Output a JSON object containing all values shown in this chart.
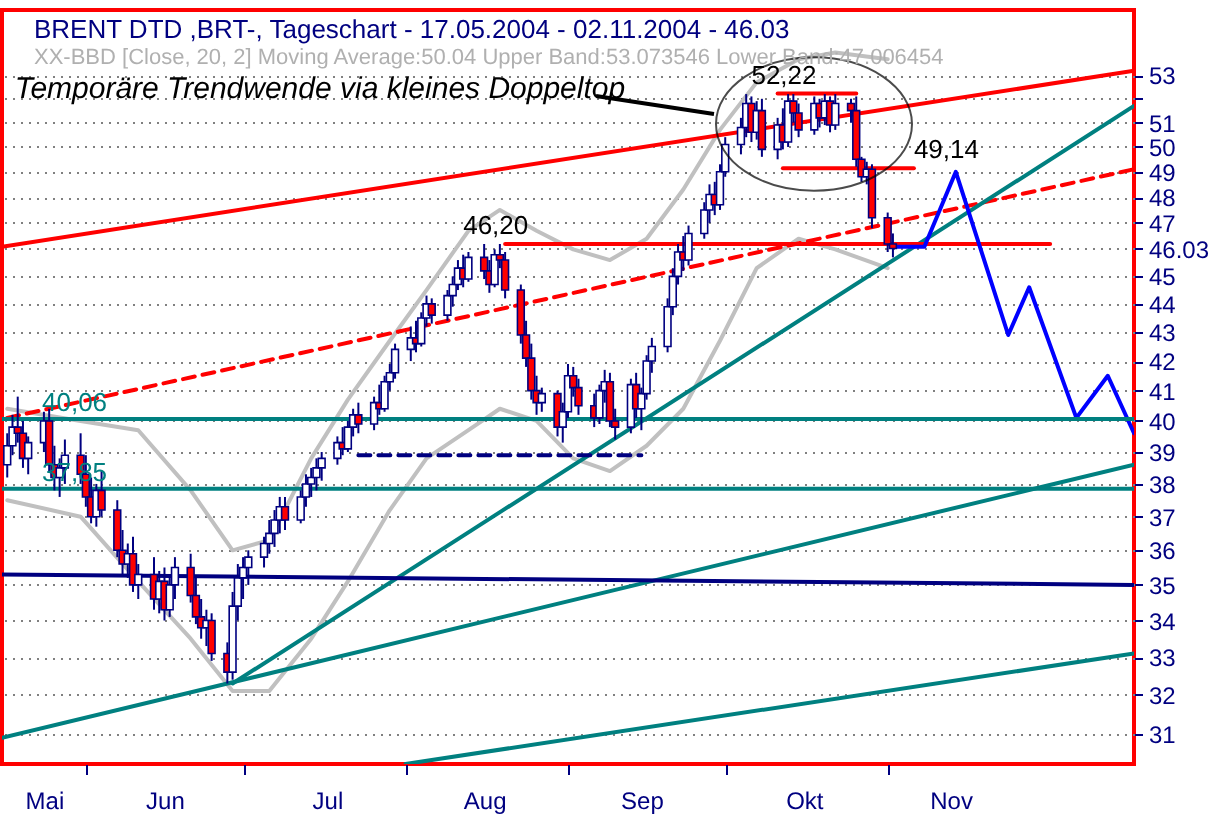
{
  "chart_data": {
    "type": "candlestick",
    "title": "BRENT DTD ,BRT-, Tageschart - 17.05.2004 - 02.11.2004 - 46.03",
    "subtitle": "XX-BBD [Close, 20, 2] Moving Average:50.04 Upper Band:53.073546 Lower Band:47.006454",
    "x": [
      "2004-05-17",
      "2004-05-18",
      "2004-05-19",
      "2004-05-20",
      "2004-05-21",
      "2004-05-24",
      "2004-05-25",
      "2004-05-26",
      "2004-05-27",
      "2004-05-28",
      "2004-05-31",
      "2004-06-01",
      "2004-06-02",
      "2004-06-03",
      "2004-06-04",
      "2004-06-07",
      "2004-06-08",
      "2004-06-09",
      "2004-06-10",
      "2004-06-11",
      "2004-06-14",
      "2004-06-15",
      "2004-06-16",
      "2004-06-17",
      "2004-06-18",
      "2004-06-21",
      "2004-06-22",
      "2004-06-23",
      "2004-06-24",
      "2004-06-25",
      "2004-06-28",
      "2004-06-29",
      "2004-06-30",
      "2004-07-01",
      "2004-07-02",
      "2004-07-05",
      "2004-07-06",
      "2004-07-07",
      "2004-07-08",
      "2004-07-09",
      "2004-07-12",
      "2004-07-13",
      "2004-07-14",
      "2004-07-15",
      "2004-07-16",
      "2004-07-19",
      "2004-07-20",
      "2004-07-21",
      "2004-07-22",
      "2004-07-23",
      "2004-07-26",
      "2004-07-27",
      "2004-07-28",
      "2004-07-29",
      "2004-07-30",
      "2004-08-02",
      "2004-08-03",
      "2004-08-04",
      "2004-08-05",
      "2004-08-06",
      "2004-08-09",
      "2004-08-10",
      "2004-08-11",
      "2004-08-12",
      "2004-08-13",
      "2004-08-16",
      "2004-08-17",
      "2004-08-18",
      "2004-08-19",
      "2004-08-20",
      "2004-08-23",
      "2004-08-24",
      "2004-08-25",
      "2004-08-26",
      "2004-08-27",
      "2004-08-30",
      "2004-08-31",
      "2004-09-01",
      "2004-09-02",
      "2004-09-03",
      "2004-09-06",
      "2004-09-07",
      "2004-09-08",
      "2004-09-09",
      "2004-09-10",
      "2004-09-13",
      "2004-09-14",
      "2004-09-15",
      "2004-09-16",
      "2004-09-17",
      "2004-09-20",
      "2004-09-21",
      "2004-09-22",
      "2004-09-23",
      "2004-09-24",
      "2004-09-27",
      "2004-09-28",
      "2004-09-29",
      "2004-09-30",
      "2004-10-01",
      "2004-10-04",
      "2004-10-05",
      "2004-10-06",
      "2004-10-07",
      "2004-10-08",
      "2004-10-11",
      "2004-10-12",
      "2004-10-13",
      "2004-10-14",
      "2004-10-15",
      "2004-10-18",
      "2004-10-19",
      "2004-10-20",
      "2004-10-21",
      "2004-10-22",
      "2004-10-25",
      "2004-10-26",
      "2004-10-27",
      "2004-10-28",
      "2004-10-29",
      "2004-11-01",
      "2004-11-02"
    ],
    "ohlc": [
      [
        38.6,
        39.6,
        38.2,
        39.2
      ],
      [
        39.2,
        40.2,
        38.9,
        39.8
      ],
      [
        39.8,
        40.8,
        39.3,
        39.6
      ],
      [
        39.6,
        40.0,
        38.5,
        38.8
      ],
      [
        38.8,
        39.5,
        38.3,
        39.3
      ],
      [
        39.3,
        40.3,
        39.0,
        40.0
      ],
      [
        40.0,
        40.4,
        38.4,
        38.6
      ],
      [
        38.6,
        39.2,
        37.8,
        38.2
      ],
      [
        38.2,
        38.8,
        37.6,
        38.5
      ],
      [
        38.5,
        39.4,
        38.0,
        38.9
      ],
      [
        38.9,
        39.6,
        38.0,
        38.3
      ],
      [
        38.3,
        38.9,
        37.3,
        37.6
      ],
      [
        37.6,
        38.2,
        36.8,
        37.0
      ],
      [
        37.0,
        38.0,
        36.7,
        37.8
      ],
      [
        37.8,
        38.4,
        37.0,
        37.2
      ],
      [
        37.2,
        37.5,
        35.8,
        36.0
      ],
      [
        36.0,
        36.6,
        35.3,
        35.6
      ],
      [
        35.6,
        36.2,
        35.2,
        35.9
      ],
      [
        35.9,
        36.4,
        34.8,
        35.0
      ],
      [
        35.0,
        35.6,
        34.6,
        35.3
      ],
      [
        35.3,
        35.8,
        34.3,
        34.6
      ],
      [
        34.6,
        35.4,
        34.2,
        35.1
      ],
      [
        35.1,
        35.5,
        34.0,
        34.3
      ],
      [
        34.3,
        35.3,
        34.1,
        35.0
      ],
      [
        35.0,
        35.8,
        34.6,
        35.5
      ],
      [
        35.5,
        35.9,
        34.5,
        34.7
      ],
      [
        34.7,
        35.2,
        33.9,
        34.1
      ],
      [
        34.1,
        34.6,
        33.5,
        33.8
      ],
      [
        33.8,
        34.3,
        33.3,
        34.0
      ],
      [
        34.0,
        34.2,
        32.9,
        33.1
      ],
      [
        33.1,
        33.4,
        32.3,
        32.6
      ],
      [
        32.6,
        34.8,
        32.4,
        34.4
      ],
      [
        34.4,
        35.6,
        34.0,
        35.2
      ],
      [
        35.2,
        35.8,
        34.6,
        35.5
      ],
      [
        35.5,
        36.0,
        35.0,
        35.8
      ],
      [
        35.8,
        36.4,
        35.5,
        36.2
      ],
      [
        36.2,
        36.9,
        35.9,
        36.5
      ],
      [
        36.5,
        37.2,
        36.1,
        36.9
      ],
      [
        36.9,
        37.6,
        36.5,
        37.3
      ],
      [
        37.3,
        37.6,
        36.6,
        36.9
      ],
      [
        36.9,
        37.8,
        36.8,
        37.6
      ],
      [
        37.6,
        38.3,
        37.3,
        38.0
      ],
      [
        38.0,
        38.5,
        37.6,
        38.2
      ],
      [
        38.2,
        38.8,
        37.8,
        38.5
      ],
      [
        38.5,
        39.0,
        38.1,
        38.8
      ],
      [
        38.8,
        39.5,
        38.6,
        39.3
      ],
      [
        39.3,
        39.8,
        38.9,
        39.1
      ],
      [
        39.1,
        40.0,
        39.0,
        39.8
      ],
      [
        39.8,
        40.4,
        39.5,
        40.2
      ],
      [
        40.2,
        40.6,
        39.6,
        39.9
      ],
      [
        39.9,
        40.8,
        39.7,
        40.6
      ],
      [
        40.6,
        41.2,
        40.2,
        40.4
      ],
      [
        40.4,
        41.5,
        40.3,
        41.3
      ],
      [
        41.3,
        41.9,
        41.0,
        41.6
      ],
      [
        41.6,
        42.6,
        41.4,
        42.4
      ],
      [
        42.4,
        43.2,
        42.0,
        42.8
      ],
      [
        42.8,
        43.4,
        42.3,
        42.6
      ],
      [
        42.6,
        43.7,
        42.5,
        43.5
      ],
      [
        43.5,
        44.3,
        43.2,
        44.0
      ],
      [
        44.0,
        44.2,
        43.3,
        43.6
      ],
      [
        43.6,
        44.5,
        43.4,
        44.3
      ],
      [
        44.3,
        45.0,
        43.9,
        44.7
      ],
      [
        44.7,
        45.6,
        44.5,
        45.3
      ],
      [
        45.3,
        45.8,
        44.6,
        44.9
      ],
      [
        44.9,
        45.9,
        44.8,
        45.7
      ],
      [
        45.7,
        46.2,
        44.9,
        45.2
      ],
      [
        45.2,
        45.6,
        44.4,
        44.7
      ],
      [
        44.7,
        46.0,
        44.6,
        45.8
      ],
      [
        45.8,
        46.2,
        45.3,
        45.6
      ],
      [
        45.6,
        45.9,
        44.2,
        44.5
      ],
      [
        44.5,
        44.7,
        42.6,
        42.9
      ],
      [
        42.9,
        43.4,
        41.8,
        42.1
      ],
      [
        42.1,
        42.6,
        40.7,
        41.0
      ],
      [
        41.0,
        41.5,
        40.2,
        40.6
      ],
      [
        40.6,
        41.1,
        40.3,
        40.9
      ],
      [
        40.9,
        41.0,
        39.5,
        39.8
      ],
      [
        39.8,
        40.6,
        39.3,
        40.3
      ],
      [
        40.3,
        41.9,
        40.1,
        41.5
      ],
      [
        41.5,
        41.8,
        40.8,
        41.1
      ],
      [
        41.1,
        41.4,
        40.2,
        40.5
      ],
      [
        40.5,
        40.9,
        39.8,
        40.1
      ],
      [
        40.1,
        41.2,
        39.9,
        41.0
      ],
      [
        41.0,
        41.7,
        40.6,
        41.3
      ],
      [
        41.3,
        41.6,
        39.8,
        40.0
      ],
      [
        40.0,
        40.4,
        39.4,
        39.8
      ],
      [
        39.8,
        41.4,
        39.6,
        41.2
      ],
      [
        41.2,
        41.6,
        40.1,
        40.4
      ],
      [
        40.4,
        41.1,
        39.7,
        40.9
      ],
      [
        40.9,
        42.2,
        40.7,
        42.0
      ],
      [
        42.0,
        42.8,
        41.6,
        42.5
      ],
      [
        42.5,
        44.2,
        42.3,
        43.9
      ],
      [
        43.9,
        45.3,
        43.6,
        45.0
      ],
      [
        45.0,
        46.2,
        44.7,
        45.9
      ],
      [
        45.9,
        46.5,
        45.2,
        45.6
      ],
      [
        45.6,
        46.9,
        45.4,
        46.6
      ],
      [
        46.6,
        47.8,
        46.4,
        47.5
      ],
      [
        47.5,
        48.5,
        47.0,
        48.1
      ],
      [
        48.1,
        48.6,
        47.3,
        47.7
      ],
      [
        47.7,
        49.3,
        47.5,
        49.0
      ],
      [
        49.0,
        50.4,
        48.8,
        50.1
      ],
      [
        50.1,
        51.2,
        49.7,
        50.8
      ],
      [
        50.8,
        52.2,
        50.4,
        51.8
      ],
      [
        51.8,
        52.1,
        50.2,
        50.6
      ],
      [
        50.6,
        51.9,
        50.3,
        51.5
      ],
      [
        51.5,
        52.0,
        49.6,
        49.9
      ],
      [
        49.9,
        51.2,
        49.5,
        50.9
      ],
      [
        50.9,
        51.6,
        49.9,
        50.2
      ],
      [
        50.2,
        52.2,
        50.0,
        51.9
      ],
      [
        51.9,
        52.2,
        51.0,
        51.4
      ],
      [
        51.4,
        51.8,
        50.4,
        50.7
      ],
      [
        50.7,
        52.1,
        50.5,
        51.8
      ],
      [
        51.8,
        52.0,
        50.8,
        51.2
      ],
      [
        51.2,
        52.2,
        50.9,
        51.9
      ],
      [
        51.9,
        52.1,
        50.6,
        50.9
      ],
      [
        50.9,
        52.2,
        50.7,
        51.8
      ],
      [
        51.8,
        52.0,
        51.0,
        51.5
      ],
      [
        51.5,
        52.1,
        49.2,
        49.5
      ],
      [
        49.5,
        49.6,
        48.6,
        48.8
      ],
      [
        48.8,
        49.4,
        48.5,
        49.1
      ],
      [
        49.1,
        49.3,
        46.8,
        47.2
      ],
      [
        47.2,
        47.4,
        45.9,
        46.2
      ],
      [
        46.2,
        46.6,
        45.7,
        46.03
      ]
    ],
    "color": "#000080",
    "colors": [
      "#ffffff",
      "#ffffff",
      "#ff0000",
      "#ff0000",
      "#ffffff",
      "#ffffff",
      "#ff0000",
      "#ff0000",
      "#ffffff",
      "#ffffff",
      "#ff0000",
      "#ff0000",
      "#ff0000",
      "#ffffff",
      "#ff0000",
      "#ff0000",
      "#ff0000",
      "#ffffff",
      "#ff0000",
      "#ffffff",
      "#ff0000",
      "#ffffff",
      "#ff0000",
      "#ffffff",
      "#ffffff",
      "#ff0000",
      "#ff0000",
      "#ff0000",
      "#ffffff",
      "#ff0000",
      "#ff0000",
      "#ffffff",
      "#ffffff",
      "#ffffff",
      "#ffffff",
      "#ffffff",
      "#ffffff",
      "#ffffff",
      "#ffffff",
      "#ff0000",
      "#ffffff",
      "#ffffff",
      "#ffffff",
      "#ffffff",
      "#ffffff",
      "#ffffff",
      "#ff0000",
      "#ffffff",
      "#ffffff",
      "#ff0000",
      "#ffffff",
      "#ff0000",
      "#ffffff",
      "#ffffff",
      "#ffffff",
      "#ffffff",
      "#ff0000",
      "#ffffff",
      "#ffffff",
      "#ff0000",
      "#ffffff",
      "#ffffff",
      "#ffffff",
      "#ff0000",
      "#ffffff",
      "#ff0000",
      "#ff0000",
      "#ffffff",
      "#ff0000",
      "#ff0000",
      "#ff0000",
      "#ff0000",
      "#ff0000",
      "#ff0000",
      "#ffffff",
      "#ff0000",
      "#ffffff",
      "#ffffff",
      "#ff0000",
      "#ff0000",
      "#ff0000",
      "#ffffff",
      "#ffffff",
      "#ff0000",
      "#ff0000",
      "#ffffff",
      "#ff0000",
      "#ffffff",
      "#ffffff",
      "#ffffff",
      "#ffffff",
      "#ffffff",
      "#ffffff",
      "#ff0000",
      "#ffffff",
      "#ffffff",
      "#ffffff",
      "#ff0000",
      "#ffffff",
      "#ffffff",
      "#ffffff",
      "#ffffff",
      "#ff0000",
      "#ffffff",
      "#ff0000",
      "#ffffff",
      "#ff0000",
      "#ffffff",
      "#ff0000",
      "#ff0000",
      "#ffffff",
      "#ff0000",
      "#ffffff",
      "#ff0000",
      "#ffffff",
      "#ff0000",
      "#ff0000",
      "#ff0000",
      "#ffffff",
      "#ff0000",
      "#ff0000",
      "#ff0000"
    ],
    "series": [
      {
        "type": "line",
        "color": "#c0c0c0",
        "x": [
          "2004-05-17",
          "2004-05-31",
          "2004-06-11",
          "2004-06-21",
          "2004-06-29",
          "2004-07-06",
          "2004-07-14",
          "2004-07-21",
          "2004-07-29",
          "2004-08-05",
          "2004-08-13",
          "2004-08-19",
          "2004-08-26",
          "2004-09-02",
          "2004-09-09",
          "2004-09-16",
          "2004-09-23",
          "2004-09-30",
          "2004-10-07",
          "2004-10-15",
          "2004-10-22",
          "2004-11-01"
        ],
        "values": [
          40.4,
          40.0,
          39.7,
          37.8,
          36.0,
          36.3,
          38.8,
          40.7,
          42.7,
          44.5,
          46.7,
          47.5,
          46.7,
          46.0,
          45.6,
          46.4,
          48.3,
          50.7,
          52.7,
          53.7,
          54.0,
          53.7
        ]
      },
      {
        "type": "line",
        "color": "#c0c0c0",
        "x": [
          "2004-05-17",
          "2004-05-31",
          "2004-06-11",
          "2004-06-21",
          "2004-06-29",
          "2004-07-06",
          "2004-07-14",
          "2004-07-21",
          "2004-07-29",
          "2004-08-05",
          "2004-08-13",
          "2004-08-19",
          "2004-08-26",
          "2004-09-02",
          "2004-09-09",
          "2004-09-16",
          "2004-09-23",
          "2004-09-30",
          "2004-10-07",
          "2004-10-15",
          "2004-10-22",
          "2004-11-01"
        ],
        "values": [
          37.5,
          37.0,
          35.1,
          33.5,
          32.1,
          32.1,
          33.5,
          35.1,
          37.2,
          38.8,
          39.7,
          40.4,
          40.0,
          38.8,
          38.4,
          39.2,
          40.4,
          42.7,
          45.3,
          46.4,
          46.0,
          45.3
        ]
      },
      {
        "type": "line",
        "color": "#ff0000",
        "x": [
          "2004-05-16",
          "2004-12-18"
        ],
        "values": [
          46.1,
          53.2
        ]
      },
      {
        "type": "line",
        "color": "#ff0000",
        "line_style": "dashed",
        "x": [
          "2004-05-17",
          "2004-12-18"
        ],
        "values": [
          40.1,
          49.1
        ]
      },
      {
        "type": "line",
        "color": "#008080",
        "x": [
          "2004-06-29",
          "2004-12-18"
        ],
        "values": [
          32.3,
          51.7
        ]
      },
      {
        "type": "line",
        "color": "#008080",
        "x": [
          "2004-05-16",
          "2004-12-18"
        ],
        "values": [
          30.9,
          38.6
        ]
      },
      {
        "type": "line",
        "color": "#008080",
        "x": [
          "2004-08-01",
          "2004-12-18"
        ],
        "values": [
          30.25,
          33.1
        ]
      },
      {
        "type": "line",
        "color": "#000080",
        "x": [
          "2004-05-16",
          "2004-12-18"
        ],
        "values": [
          35.3,
          35.0
        ]
      },
      {
        "type": "line",
        "color": "#000080",
        "line_style": "dashed",
        "x": [
          "2004-07-23",
          "2004-09-15"
        ],
        "values": [
          38.9,
          38.9
        ]
      },
      {
        "type": "line",
        "color": "#ff0000",
        "x": [
          "2004-08-20",
          "2004-12-02"
        ],
        "values": [
          46.2,
          46.2
        ]
      },
      {
        "type": "line",
        "color": "#ff0000",
        "x": [
          "2004-10-11",
          "2004-10-26"
        ],
        "values": [
          52.22,
          52.22
        ]
      },
      {
        "type": "line",
        "color": "#ff0000",
        "x": [
          "2004-10-12",
          "2004-11-06"
        ],
        "values": [
          49.14,
          49.14
        ]
      },
      {
        "type": "line",
        "color": "#0000ff",
        "x": [
          "2004-11-02",
          "2004-11-08",
          "2004-11-14",
          "2004-11-24",
          "2004-11-28",
          "2004-12-07",
          "2004-12-13",
          "2004-12-18"
        ],
        "values": [
          46.1,
          46.1,
          49.0,
          42.9,
          44.6,
          40.1,
          41.5,
          39.6
        ]
      }
    ],
    "ref_lines": [
      {
        "axis": "y",
        "value": 40.06,
        "label": "40,06",
        "color": "#008080"
      },
      {
        "axis": "y",
        "value": 37.85,
        "label": "37,85",
        "color": "#008080"
      }
    ],
    "annotations": [
      "Temporäre Trendwende via kleines Doppeltop",
      {
        "text": "52,22",
        "x": "2004-10-06",
        "y": 52.22
      },
      {
        "text": "49,14",
        "x": "2004-11-06",
        "y": 49.14
      },
      {
        "text": "46,20",
        "x": "2004-08-12",
        "y": 46.2
      }
    ],
    "xlim": [
      "2004-05-16",
      "2004-12-18"
    ],
    "xticks": [
      {
        "value": "2004-05-24",
        "label": "Mai"
      },
      {
        "value": "2004-06-01",
        "label": null
      },
      {
        "value": "2004-06-16",
        "label": "Jun"
      },
      {
        "value": "2004-07-01",
        "label": null
      },
      {
        "value": "2004-07-17",
        "label": "Jul"
      },
      {
        "value": "2004-08-01",
        "label": null
      },
      {
        "value": "2004-08-16",
        "label": "Aug"
      },
      {
        "value": "2004-09-01",
        "label": null
      },
      {
        "value": "2004-09-15",
        "label": "Sep"
      },
      {
        "value": "2004-10-01",
        "label": null
      },
      {
        "value": "2004-10-16",
        "label": "Okt"
      },
      {
        "value": "2004-11-01",
        "label": null
      },
      {
        "value": "2004-11-13",
        "label": "Nov"
      }
    ],
    "ylim": [
      30.25,
      55.9
    ],
    "yticks": [
      31,
      32,
      33,
      34,
      35,
      36,
      37,
      38,
      39,
      40,
      41,
      42,
      43,
      44,
      45,
      46.03,
      47,
      48,
      49,
      50,
      51,
      {
        "value": 52,
        "label": null
      },
      53
    ],
    "log": true,
    "grid": "y"
  }
}
